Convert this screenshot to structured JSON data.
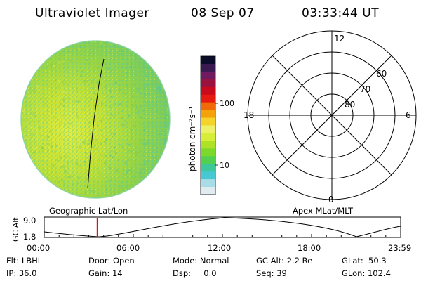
{
  "header": {
    "title": "Ultraviolet Imager",
    "date": "08 Sep 07",
    "time": "03:33:44 UT"
  },
  "colorbar": {
    "unit_label": "photon cm⁻²s⁻¹",
    "ticks": [
      "100",
      "10"
    ],
    "colors": [
      "#0b0b2a",
      "#3a1850",
      "#701a60",
      "#9a1240",
      "#c80a1c",
      "#e61a10",
      "#f06a08",
      "#f4a20a",
      "#f4d42a",
      "#eef06a",
      "#d6ee38",
      "#aee224",
      "#7cd82a",
      "#54d050",
      "#3cc89a",
      "#48c8d2",
      "#a8dce6",
      "#e0ecf0"
    ]
  },
  "image": {
    "palette": [
      "#dcea4a",
      "#b4de3e",
      "#9cd648",
      "#7ccc5a",
      "#5ec88a",
      "#3fc4c4"
    ]
  },
  "polar": {
    "lat_labels": [
      "60",
      "70",
      "80"
    ],
    "mlt_labels": {
      "top": "12",
      "left": "18",
      "right": "6",
      "bottom": "0"
    }
  },
  "altitude_plot": {
    "left_label": "Geographic Lat/Lon",
    "right_label": "Apex MLat/MLT",
    "y_axis_label": "GC Alt",
    "y_ticks": [
      "9.0",
      "1.8"
    ],
    "x_ticks": [
      "00:00",
      "06:00",
      "12:00",
      "18:00",
      "23:59"
    ],
    "marker_time_hours": 3.56,
    "marker_color": "#e01010"
  },
  "footer": {
    "flt": "Flt: LBHL",
    "ip": "IP: 36.0",
    "door": "Door: Open",
    "gain": "Gain: 14",
    "mode": "Mode: Normal",
    "dsp": "Dsp:     0.0",
    "gc_alt": "GC Alt: 2.2 Re",
    "seq": "Seq: 39",
    "glat": "GLat:  50.3",
    "glon": "GLon: 102.4"
  }
}
